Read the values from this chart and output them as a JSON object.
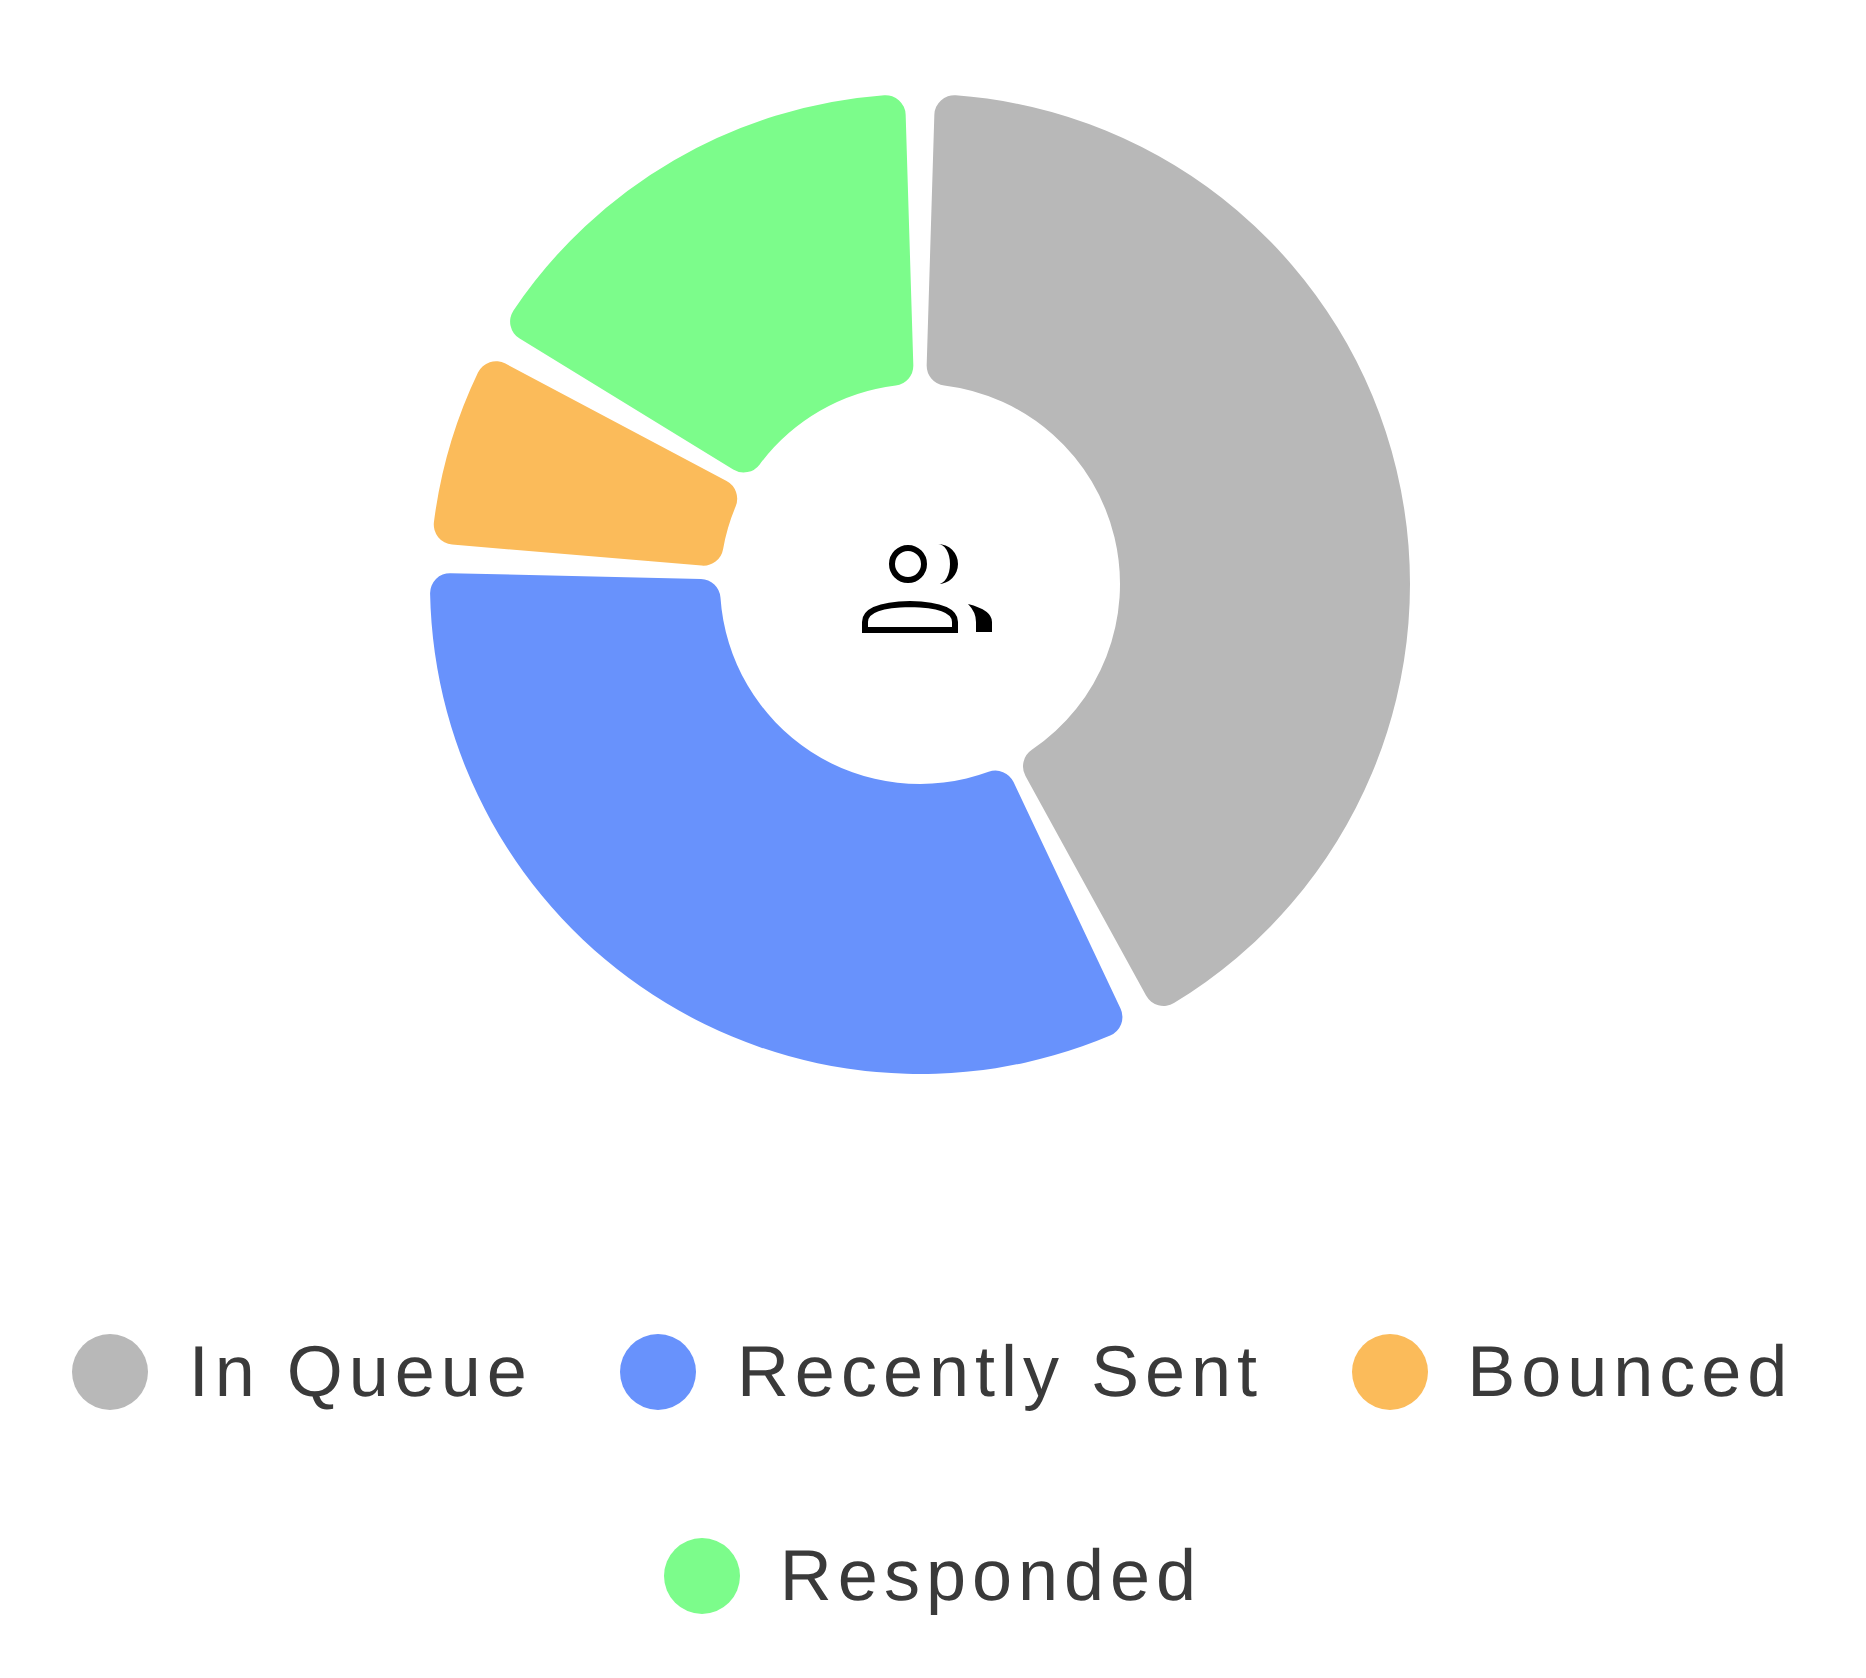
{
  "chart_data": {
    "type": "donut",
    "categories": [
      "In Queue",
      "Recently Sent",
      "Bounced",
      "Responded"
    ],
    "values": [
      43.2,
      33.7,
      6.7,
      16.4
    ],
    "colors": [
      "#b8b8b8",
      "#6892fc",
      "#fbbb5a",
      "#7cfc8b"
    ],
    "legend": "bottom"
  }
}
